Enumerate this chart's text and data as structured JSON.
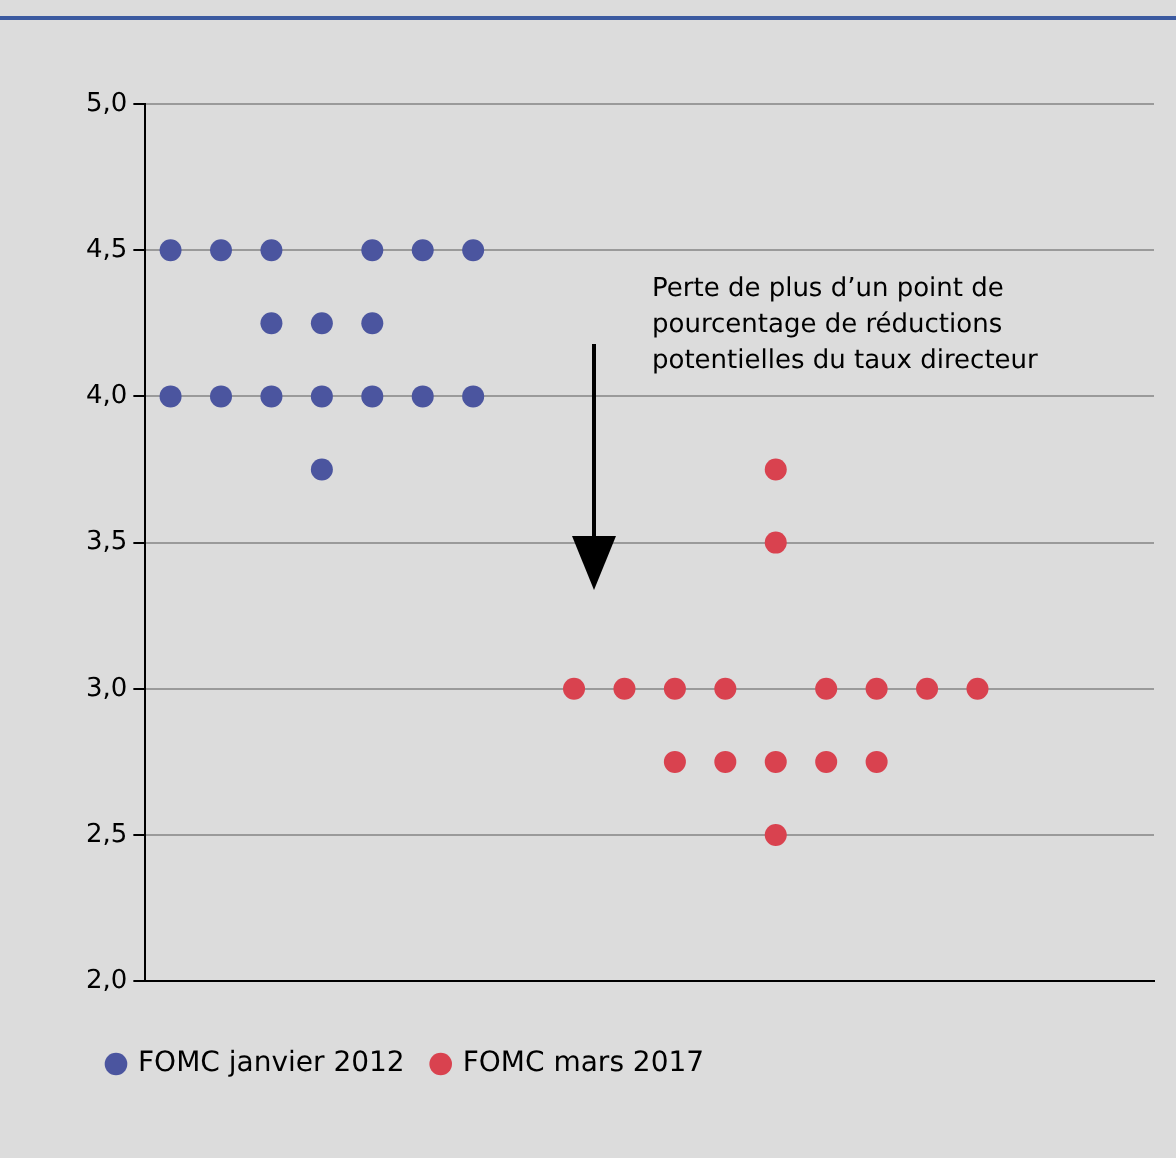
{
  "chart_data": {
    "type": "scatter",
    "categories": [
      null,
      null,
      null,
      null,
      null,
      null,
      null,
      null,
      null,
      null,
      null,
      null,
      null,
      null,
      null,
      null,
      null,
      null,
      null,
      null
    ],
    "series": [
      {
        "name": "FOMC janvier 2012",
        "color": "#4b559f",
        "values": [
          4.5,
          4.5,
          4.5,
          null,
          4.5,
          4.5,
          4.5,
          null,
          null,
          null,
          null,
          null,
          null,
          null,
          null,
          null,
          null,
          null,
          null,
          null
        ]
      },
      {
        "color": "#4b559f",
        "values": [
          null,
          null,
          4.25,
          4.25,
          4.25,
          null,
          null,
          null,
          null,
          null,
          null,
          null,
          null,
          null,
          null,
          null,
          null,
          null,
          null,
          null
        ]
      },
      {
        "color": "#4b559f",
        "values": [
          4.0,
          4.0,
          4.0,
          4.0,
          4.0,
          4.0,
          4.0,
          null,
          null,
          null,
          null,
          null,
          null,
          null,
          null,
          null,
          null,
          null,
          null,
          null
        ]
      },
      {
        "color": "#4b559f",
        "values": [
          null,
          null,
          null,
          3.75,
          null,
          null,
          null,
          null,
          null,
          null,
          null,
          null,
          null,
          null,
          null,
          null,
          null,
          null,
          null,
          null
        ]
      },
      {
        "name": "FOMC mars 2017",
        "color": "#d9424f",
        "values": [
          null,
          null,
          null,
          null,
          null,
          null,
          null,
          null,
          3.0,
          3.0,
          3.0,
          3.0,
          null,
          3.0,
          3.0,
          3.0,
          3.0,
          null,
          null,
          null
        ]
      },
      {
        "color": "#d9424f",
        "values": [
          null,
          null,
          null,
          null,
          null,
          null,
          null,
          null,
          null,
          null,
          2.75,
          2.75,
          2.75,
          2.75,
          2.75,
          null,
          null,
          null,
          null,
          null
        ]
      },
      {
        "color": "#d9424f",
        "values": [
          null,
          null,
          null,
          null,
          null,
          null,
          null,
          null,
          null,
          null,
          null,
          null,
          3.75,
          null,
          null,
          null,
          null,
          null,
          null,
          null
        ]
      },
      {
        "color": "#d9424f",
        "values": [
          null,
          null,
          null,
          null,
          null,
          null,
          null,
          null,
          null,
          null,
          null,
          null,
          3.5,
          null,
          null,
          null,
          null,
          null,
          null,
          null
        ]
      },
      {
        "color": "#d9424f",
        "values": [
          null,
          null,
          null,
          null,
          null,
          null,
          null,
          null,
          null,
          null,
          null,
          null,
          2.5,
          null,
          null,
          null,
          null,
          null,
          null,
          null
        ]
      }
    ],
    "ylim": [
      2,
      5
    ],
    "yticks": [
      {
        "value": 2,
        "label": "2,0"
      },
      {
        "value": 2.5,
        "label": "2,5"
      },
      {
        "value": 3,
        "label": "3,0"
      },
      {
        "value": 3.5,
        "label": "3,5"
      },
      {
        "value": 4,
        "label": "4,0"
      },
      {
        "value": 4.5,
        "label": "4,5"
      },
      {
        "value": 5,
        "label": "5,0"
      }
    ],
    "grid": "y",
    "legend": "bottom",
    "marker": "circle",
    "annotations": [
      "Perte de plus d’un point de pourcentage de réductions potentielles du taux directeur"
    ]
  }
}
